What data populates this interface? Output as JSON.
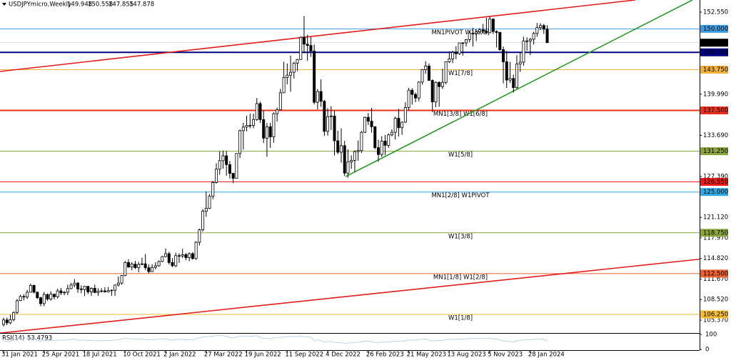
{
  "chart_data": {
    "type": "candlestick",
    "title": "USDJPYmicro,Weekly",
    "categories": [
      "31 Jan 2021",
      null,
      null,
      null,
      null,
      null,
      null,
      null,
      null,
      null,
      null,
      null,
      "25 Apr 2021",
      null,
      null,
      null,
      null,
      null,
      null,
      null,
      null,
      null,
      null,
      null,
      "18 Jul 2021",
      null,
      null,
      null,
      null,
      null,
      null,
      null,
      null,
      null,
      null,
      null,
      "10 Oct 2021",
      null,
      null,
      null,
      null,
      null,
      null,
      null,
      null,
      null,
      null,
      null,
      "2 Jan 2022",
      null,
      null,
      null,
      null,
      null,
      null,
      null,
      null,
      null,
      null,
      null,
      "27 Mar 2022",
      null,
      null,
      null,
      null,
      null,
      null,
      null,
      null,
      null,
      null,
      null,
      "19 Jun 2022",
      null,
      null,
      null,
      null,
      null,
      null,
      null,
      null,
      null,
      null,
      null,
      "11 Sep 2022",
      null,
      null,
      null,
      null,
      null,
      null,
      null,
      null,
      null,
      null,
      null,
      "4 Dec 2022",
      null,
      null,
      null,
      null,
      null,
      null,
      null,
      null,
      null,
      null,
      null,
      "26 Feb 2023",
      null,
      null,
      null,
      null,
      null,
      null,
      null,
      null,
      null,
      null,
      null,
      "21 May 2023",
      null,
      null,
      null,
      null,
      null,
      null,
      null,
      null,
      null,
      null,
      null,
      "13 Aug 2023",
      null,
      null,
      null,
      null,
      null,
      null,
      null,
      null,
      null,
      null,
      null,
      "5 Nov 2023",
      null,
      null,
      null,
      null,
      null,
      null,
      null,
      null,
      null,
      null,
      null,
      "28 Jan 2024",
      null,
      null,
      null,
      null,
      null
    ],
    "open": [
      104.7,
      105.4,
      104.95,
      105.45,
      106.55,
      108.35,
      109.0,
      108.9,
      109.65,
      110.7,
      109.65,
      108.8,
      107.9,
      109.3,
      108.6,
      109.35,
      108.95,
      109.85,
      109.55,
      109.65,
      110.2,
      110.75,
      111.05,
      110.15,
      110.05,
      110.55,
      109.7,
      110.25,
      109.6,
      109.8,
      109.85,
      109.7,
      109.9,
      109.95,
      110.75,
      111.05,
      112.2,
      114.2,
      113.5,
      113.95,
      113.4,
      113.9,
      114.0,
      113.4,
      112.8,
      113.45,
      113.7,
      114.35,
      115.1,
      115.55,
      114.2,
      113.7,
      115.25,
      115.2,
      115.4,
      114.95,
      115.55,
      114.8,
      117.3,
      119.2,
      122.05,
      122.5,
      124.35,
      126.45,
      128.5,
      129.8,
      130.55,
      129.2,
      127.85,
      127.1,
      130.9,
      134.4,
      134.95,
      135.2,
      135.2,
      136.1,
      138.55,
      136.1,
      133.25,
      135.0,
      133.45,
      137.0,
      137.6,
      140.2,
      142.55,
      142.9,
      143.35,
      144.75,
      145.3,
      148.7,
      147.65,
      147.45,
      146.6,
      138.75,
      140.4,
      138.9,
      134.3,
      136.55,
      136.65,
      132.85,
      131.1,
      132.1,
      127.9,
      129.6,
      129.85,
      131.2,
      131.35,
      134.15,
      136.45,
      135.85,
      135.0,
      131.8,
      130.75,
      132.8,
      132.15,
      133.75,
      134.15,
      136.3,
      134.85,
      135.7,
      137.95,
      140.6,
      139.95,
      139.4,
      141.85,
      143.75,
      144.3,
      142.1,
      138.8,
      141.8,
      141.15,
      141.8,
      144.95,
      145.4,
      146.4,
      146.2,
      147.85,
      147.85,
      148.35,
      149.35,
      149.3,
      149.55,
      149.85,
      149.65,
      149.4,
      151.5,
      149.6,
      149.45,
      146.8,
      144.95,
      142.15,
      142.4,
      141.0,
      144.6,
      144.9,
      148.15,
      148.15,
      148.4,
      149.3,
      150.2,
      150.5,
      149.948
    ],
    "high": [
      105.75,
      105.75,
      106.2,
      106.7,
      108.6,
      109.25,
      109.35,
      110.0,
      110.95,
      110.8,
      109.75,
      108.95,
      109.7,
      109.45,
      109.8,
      109.35,
      110.2,
      110.3,
      109.8,
      110.8,
      111.1,
      111.65,
      111.2,
      110.7,
      110.6,
      110.6,
      110.4,
      110.8,
      110.25,
      110.25,
      110.4,
      110.45,
      110.1,
      110.8,
      112.05,
      112.3,
      114.45,
      114.7,
      114.25,
      114.45,
      114.3,
      114.95,
      115.5,
      113.9,
      113.95,
      114.25,
      114.5,
      115.2,
      116.35,
      115.85,
      114.85,
      115.7,
      115.6,
      116.3,
      115.65,
      115.75,
      115.8,
      117.45,
      119.4,
      122.4,
      125.1,
      124.7,
      126.7,
      129.4,
      131.25,
      131.35,
      131.3,
      129.75,
      127.95,
      130.95,
      134.55,
      135.6,
      136.7,
      137.0,
      137.0,
      139.4,
      138.85,
      137.45,
      135.55,
      135.6,
      137.2,
      137.95,
      140.8,
      144.95,
      144.7,
      145.9,
      144.95,
      145.4,
      148.85,
      151.95,
      149.1,
      148.85,
      147.6,
      140.8,
      142.25,
      139.1,
      137.85,
      138.15,
      137.5,
      134.4,
      134.75,
      132.85,
      131.55,
      130.6,
      131.4,
      132.9,
      134.35,
      136.55,
      137.1,
      137.9,
      135.1,
      133.0,
      133.55,
      133.75,
      134.0,
      134.6,
      136.55,
      137.75,
      135.8,
      138.75,
      140.95,
      140.9,
      140.25,
      141.95,
      143.85,
      145.05,
      144.7,
      142.25,
      141.95,
      141.95,
      143.9,
      145.0,
      146.55,
      146.65,
      147.35,
      147.85,
      147.95,
      148.45,
      149.7,
      150.15,
      149.8,
      150.1,
      150.75,
      151.7,
      151.9,
      151.6,
      149.75,
      149.55,
      147.3,
      146.6,
      144.95,
      143.0,
      145.95,
      146.4,
      148.8,
      148.7,
      148.6,
      149.55,
      150.9,
      150.85,
      150.75,
      150.558
    ],
    "low": [
      104.4,
      104.6,
      104.75,
      105.2,
      106.3,
      108.3,
      108.4,
      108.6,
      109.6,
      109.45,
      108.6,
      107.5,
      107.5,
      108.35,
      108.35,
      108.55,
      108.7,
      109.2,
      109.2,
      109.2,
      110.1,
      110.4,
      109.55,
      109.5,
      109.05,
      109.35,
      109.1,
      109.5,
      109.1,
      109.6,
      109.6,
      109.6,
      109.1,
      109.1,
      110.5,
      110.8,
      112.1,
      113.4,
      113.0,
      113.2,
      112.7,
      113.8,
      113.05,
      112.55,
      112.85,
      113.15,
      113.55,
      114.25,
      115.0,
      113.9,
      113.5,
      113.5,
      114.15,
      114.9,
      114.55,
      114.4,
      114.65,
      114.6,
      116.8,
      118.95,
      121.2,
      122.4,
      123.9,
      126.3,
      127.65,
      128.6,
      127.5,
      127.05,
      126.35,
      127.35,
      130.2,
      131.5,
      134.3,
      134.75,
      134.75,
      135.9,
      135.6,
      132.5,
      130.4,
      131.75,
      132.55,
      135.8,
      137.5,
      140.15,
      141.5,
      140.35,
      142.4,
      143.5,
      145.25,
      146.25,
      145.1,
      145.7,
      138.45,
      137.65,
      138.05,
      133.6,
      133.65,
      134.5,
      130.6,
      130.8,
      129.5,
      127.45,
      127.2,
      128.55,
      128.1,
      129.8,
      131.0,
      134.05,
      135.25,
      134.1,
      131.55,
      129.65,
      130.4,
      130.65,
      131.75,
      133.55,
      133.05,
      133.5,
      133.75,
      135.6,
      137.5,
      138.4,
      138.75,
      138.9,
      141.45,
      143.1,
      142.05,
      137.25,
      138.0,
      138.05,
      140.8,
      141.5,
      144.75,
      144.75,
      145.35,
      146.0,
      145.9,
      147.3,
      147.95,
      147.3,
      148.15,
      149.35,
      149.3,
      149.2,
      149.35,
      149.2,
      147.15,
      146.65,
      141.65,
      140.95,
      141.7,
      140.25,
      140.8,
      143.4,
      144.35,
      146.65,
      146.0,
      147.6,
      148.8,
      149.8,
      149.2,
      147.855
    ],
    "close": [
      105.4,
      104.95,
      105.45,
      106.55,
      108.35,
      109.0,
      108.9,
      109.65,
      110.7,
      109.65,
      108.8,
      107.9,
      109.3,
      108.6,
      109.35,
      108.95,
      109.85,
      109.55,
      109.65,
      110.2,
      110.75,
      111.05,
      110.15,
      110.05,
      110.55,
      109.7,
      110.25,
      109.6,
      109.8,
      109.85,
      109.7,
      109.9,
      109.95,
      110.75,
      111.05,
      112.2,
      114.2,
      113.5,
      113.95,
      113.4,
      113.9,
      114.0,
      113.4,
      112.8,
      113.45,
      113.7,
      114.35,
      115.1,
      115.55,
      114.2,
      113.7,
      115.25,
      115.2,
      115.4,
      114.95,
      115.55,
      114.8,
      117.3,
      119.2,
      122.05,
      122.5,
      124.35,
      126.45,
      128.5,
      129.8,
      130.55,
      129.2,
      127.85,
      127.1,
      130.9,
      134.4,
      134.95,
      135.2,
      135.2,
      136.1,
      138.55,
      136.1,
      133.25,
      135.0,
      133.45,
      137.0,
      137.6,
      140.2,
      142.55,
      142.9,
      143.35,
      144.75,
      145.3,
      148.7,
      147.65,
      147.45,
      146.6,
      138.75,
      140.4,
      138.9,
      134.3,
      136.55,
      136.65,
      132.85,
      131.1,
      132.1,
      127.9,
      129.6,
      129.85,
      131.2,
      131.35,
      134.15,
      136.45,
      135.85,
      135.0,
      131.8,
      130.75,
      132.8,
      132.15,
      133.75,
      134.15,
      136.3,
      134.85,
      135.7,
      137.95,
      140.6,
      139.95,
      139.4,
      141.85,
      143.75,
      144.3,
      142.1,
      138.8,
      141.8,
      141.15,
      141.8,
      144.95,
      145.4,
      146.4,
      146.2,
      147.85,
      147.85,
      148.35,
      149.35,
      149.3,
      149.55,
      149.85,
      149.65,
      149.4,
      151.5,
      149.6,
      149.45,
      146.8,
      144.95,
      142.15,
      142.4,
      141.0,
      144.6,
      144.9,
      148.15,
      148.15,
      148.4,
      149.3,
      150.2,
      150.5,
      149.95,
      147.878
    ],
    "up_color": "#ffffff",
    "down_color": "#000000",
    "ylim": [
      103.4,
      154.2
    ],
    "yticks": [
      {
        "value": 152.55,
        "label": "152.550"
      },
      {
        "value": 139.99,
        "label": "139.990"
      },
      {
        "value": 133.69,
        "label": "133.690"
      },
      {
        "value": 127.39,
        "label": "127.390"
      },
      {
        "value": 121.12,
        "label": "121.120"
      },
      {
        "value": 117.97,
        "label": "117.970"
      },
      {
        "value": 114.82,
        "label": "114.820"
      },
      {
        "value": 111.67,
        "label": "111.670"
      },
      {
        "value": 108.52,
        "label": "108.520"
      },
      {
        "value": 105.37,
        "label": "105.370"
      }
    ],
    "grid": false,
    "levels": [
      {
        "value": 150,
        "value_label": "150.000",
        "text": "MN1PIVOT W1[8/8]",
        "color": "#3d9be0",
        "line_width": 1
      },
      {
        "value": 146.4,
        "value_label": "146.400",
        "color": "#000080",
        "line_width": 2
      },
      {
        "value": 143.75,
        "value_label": "143.750",
        "text": "W1[7/8]",
        "color": "#f0b035",
        "line_width": 1
      },
      {
        "value": 137.5,
        "value_label": "137.500",
        "text": "MN1[3/8] W1[6/8]",
        "color": "#e8301c",
        "line_width": 2
      },
      {
        "value": 131.25,
        "value_label": "131.250",
        "text": "W1[5/8]",
        "color": "#8aa33a",
        "line_width": 1
      },
      {
        "value": 126.55,
        "value_label": "126.550",
        "color": "#e81c1c",
        "line_width": 1
      },
      {
        "value": 125,
        "value_label": "125.000",
        "text": "MN1[2/8] W1PIVOT",
        "color": "#2fa8e0",
        "line_width": 1
      },
      {
        "value": 118.75,
        "value_label": "118.750",
        "text": "W1[3/8]",
        "color": "#8aa33a",
        "line_width": 1
      },
      {
        "value": 112.5,
        "value_label": "112.500",
        "text": "MN1[1/8] W1[2/8]",
        "color": "#e8602c",
        "line_width": 1
      },
      {
        "value": 106.25,
        "value_label": "106.250",
        "text": "W1[1/8]",
        "color": "#f5bb30",
        "line_width": 1
      }
    ],
    "trendlines": [
      {
        "color": "#e01c1c",
        "from": [
          -1.06,
          143.47
        ],
        "to": [
          187.1,
          154.42
        ]
      },
      {
        "color": "#e01c1c",
        "from": [
          -1.06,
          103.38
        ],
        "to": [
          215.4,
          115.21
        ]
      },
      {
        "color": "#2a9a2a",
        "from": [
          101.3,
          127.37
        ],
        "to": [
          204,
          154.42
        ]
      }
    ],
    "rsi": {
      "name": "RSI(14)",
      "color": "#a9cbe8",
      "ylim": [
        0,
        100
      ],
      "yticks": [
        100,
        0
      ],
      "values": [
        55,
        52,
        56,
        62,
        70,
        72,
        71,
        74,
        77,
        68,
        62,
        55,
        62,
        58,
        61,
        59,
        63,
        61,
        62,
        65,
        67,
        68,
        62,
        61,
        63,
        58,
        61,
        57,
        58,
        59,
        58,
        59,
        59,
        63,
        64,
        69,
        76,
        71,
        72,
        68,
        70,
        70,
        66,
        62,
        65,
        66,
        68,
        71,
        72,
        64,
        61,
        67,
        67,
        67,
        64,
        67,
        62,
        72,
        77,
        83,
        84,
        86,
        89,
        91,
        92,
        92,
        86,
        80,
        77,
        83,
        87,
        88,
        88,
        88,
        89,
        91,
        81,
        72,
        75,
        70,
        77,
        78,
        81,
        84,
        84,
        85,
        86,
        86,
        89,
        85,
        84,
        81,
        60,
        63,
        59,
        50,
        53,
        53,
        47,
        45,
        46,
        40,
        43,
        44,
        46,
        47,
        51,
        55,
        54,
        52,
        47,
        46,
        49,
        48,
        51,
        52,
        55,
        53,
        54,
        58,
        63,
        62,
        61,
        65,
        68,
        69,
        63,
        55,
        60,
        59,
        60,
        65,
        66,
        68,
        67,
        70,
        70,
        71,
        73,
        72,
        73,
        73,
        73,
        72,
        75,
        70,
        70,
        63,
        58,
        52,
        53,
        50,
        58,
        59,
        65,
        65,
        65,
        67,
        69,
        69,
        67,
        53.4793
      ]
    }
  }
}
